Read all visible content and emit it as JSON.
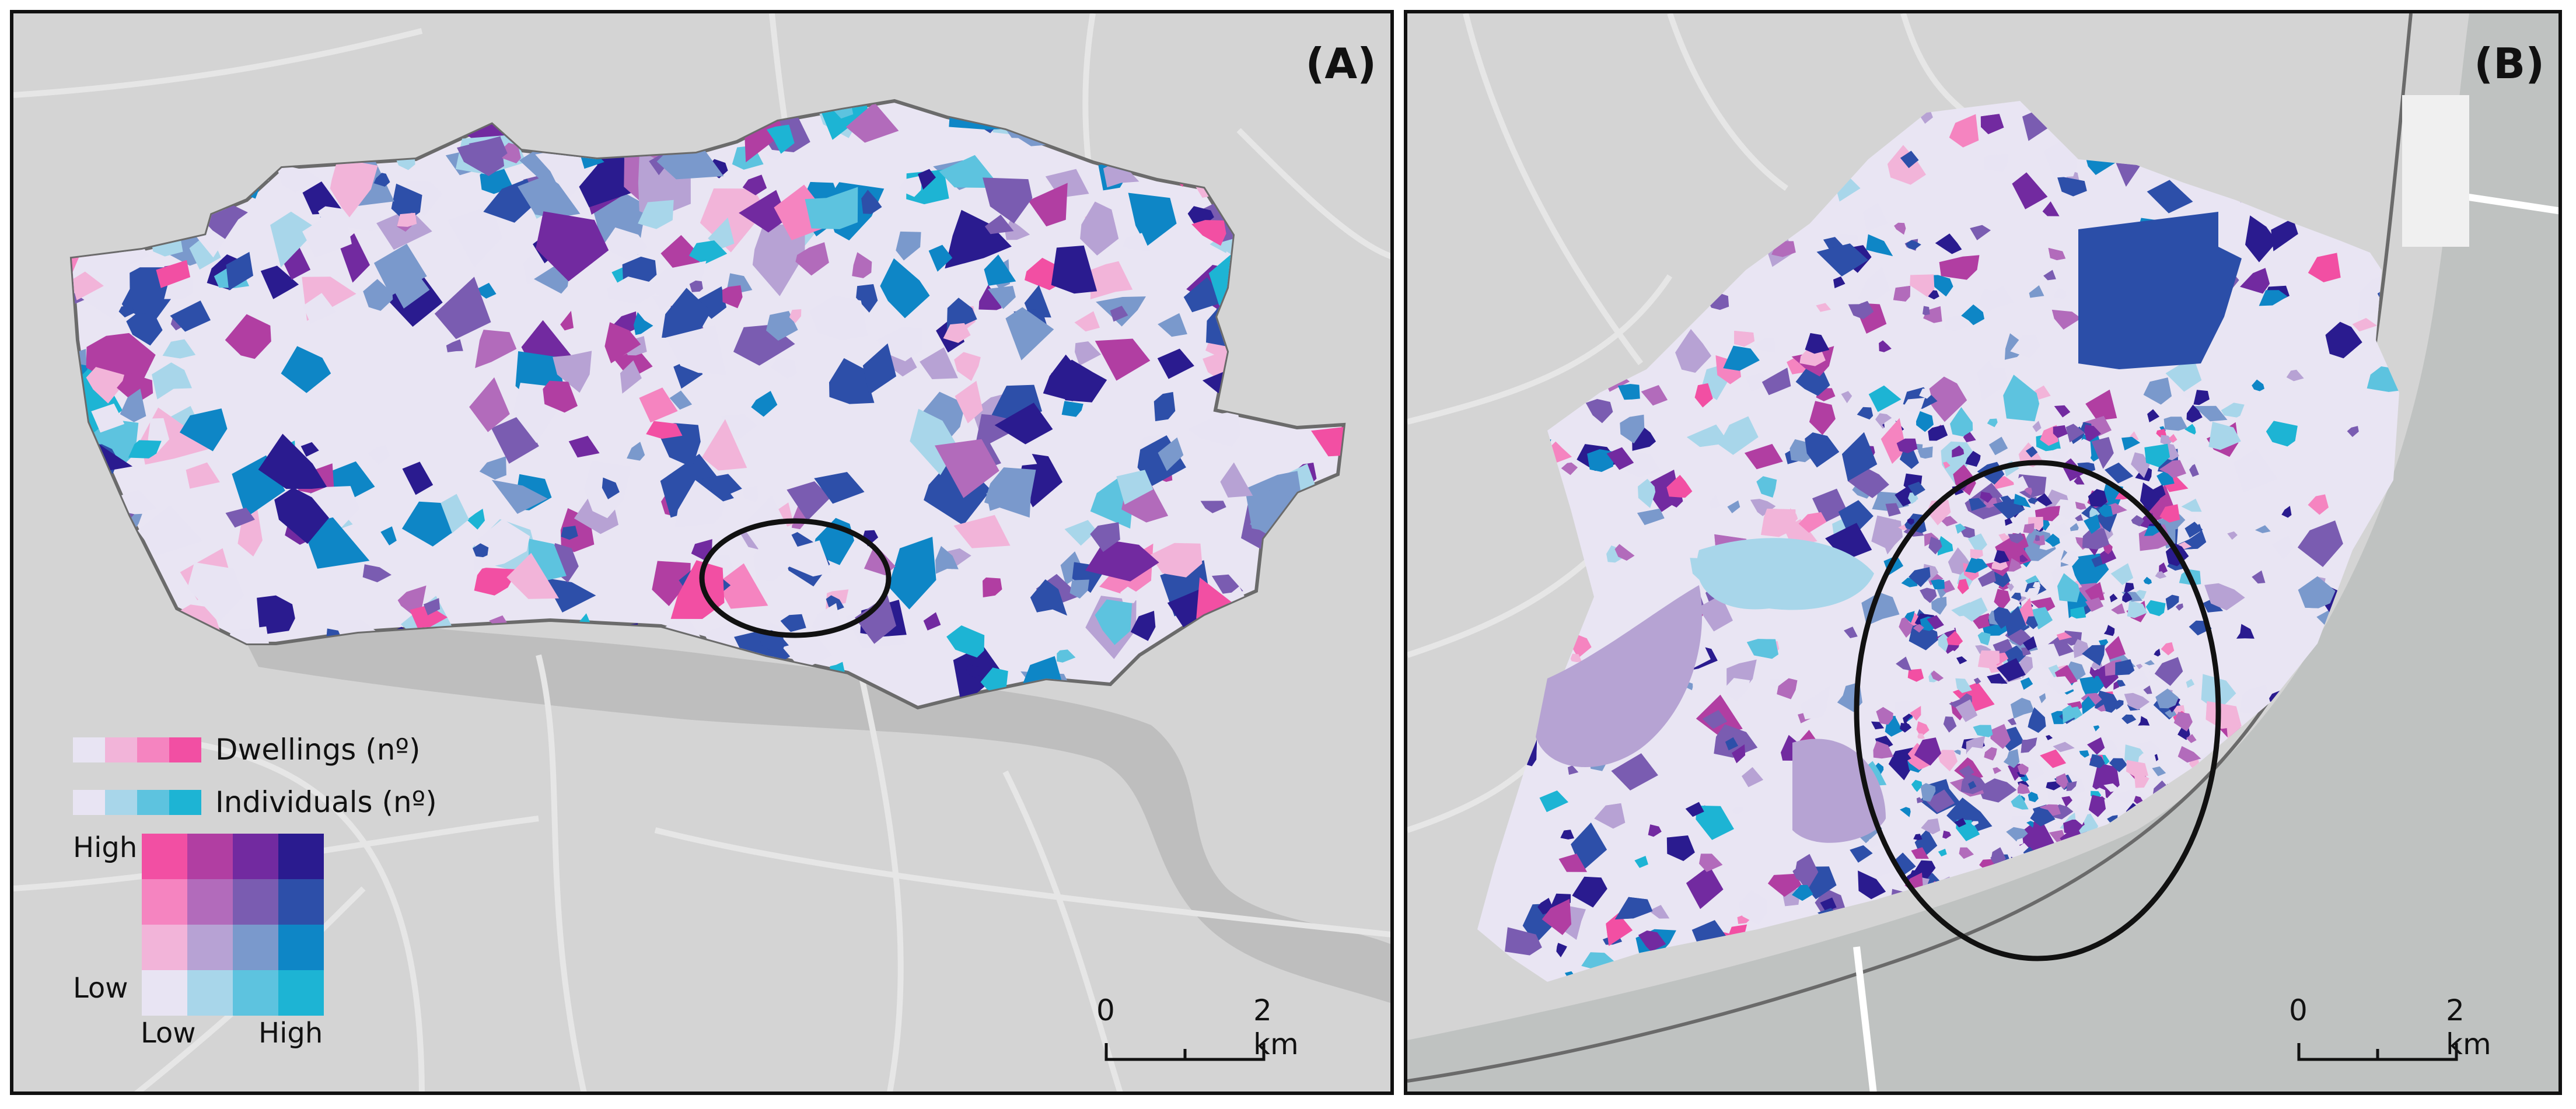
{
  "panels": [
    {
      "label": "(A)",
      "legend": {
        "dwellings_label": "Dwellings (nº)",
        "individuals_label": "Individuals (nº)",
        "dwellings_ramp": [
          "#e8e4f3",
          "#f2b4d9",
          "#f584c0",
          "#f24fa3"
        ],
        "individuals_ramp": [
          "#e8e4f3",
          "#a8d6ea",
          "#5dc3df",
          "#1db4d4"
        ],
        "matrix": [
          [
            "#f24fa3",
            "#b13ea2",
            "#722aa0",
            "#2a1b8f"
          ],
          [
            "#f584c0",
            "#b26bbb",
            "#7a5cb1",
            "#2d4fa9"
          ],
          [
            "#f2b4d9",
            "#b7a2d4",
            "#7a99cc",
            "#0e86c6"
          ],
          [
            "#e8e4f3",
            "#a8d6ea",
            "#5dc3df",
            "#1db4d4"
          ]
        ],
        "high_label": "High",
        "low_label": "Low",
        "x_low_label": "Low",
        "x_high_label": "High"
      },
      "scale": {
        "zero": "0",
        "end": "2 km"
      }
    },
    {
      "label": "(B)",
      "scale": {
        "zero": "0",
        "end": "2 km"
      }
    }
  ]
}
